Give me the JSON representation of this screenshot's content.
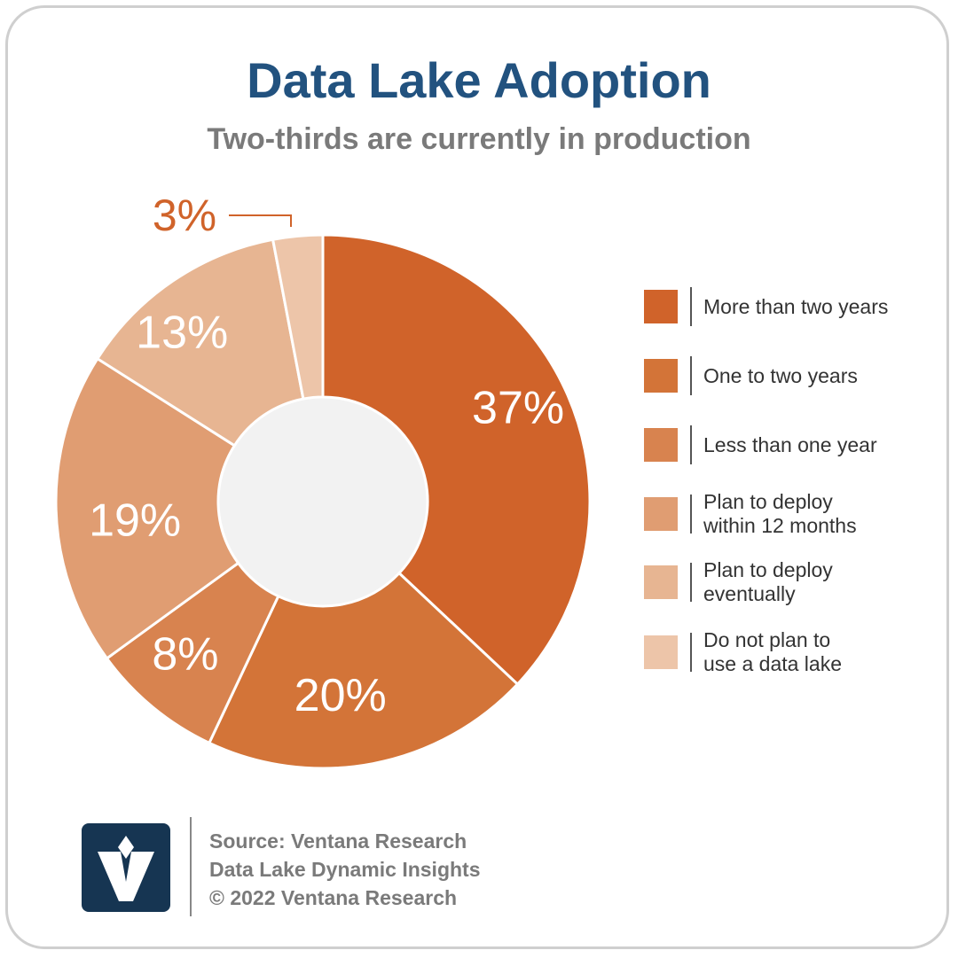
{
  "title": "Data Lake Adoption",
  "subtitle": "Two-thirds are currently in production",
  "chart_data": {
    "type": "pie",
    "donut": true,
    "title": "Data Lake Adoption",
    "subtitle": "Two-thirds are currently in production",
    "legend_position": "right",
    "slices": [
      {
        "label": "More than two years",
        "value": 37,
        "display": "37%",
        "color": "#d0632a"
      },
      {
        "label": "One to two years",
        "value": 20,
        "display": "20%",
        "color": "#d37438"
      },
      {
        "label": "Less than one year",
        "value": 8,
        "display": "8%",
        "color": "#d8834f"
      },
      {
        "label": "Plan to deploy\nwithin 12 months",
        "value": 19,
        "display": "19%",
        "color": "#e09d72"
      },
      {
        "label": "Plan to deploy\neventually",
        "value": 13,
        "display": "13%",
        "color": "#e7b592"
      },
      {
        "label": "Do not plan to\nuse a data lake",
        "value": 3,
        "display": "3%",
        "color": "#edc5a9"
      }
    ],
    "callout_color": "#d0632a",
    "hole_color": "#f2f2f2"
  },
  "footer": {
    "source": "Source: Ventana Research",
    "report": "Data Lake Dynamic Insights",
    "copyright": "© 2022 Ventana Research"
  },
  "colors": {
    "title": "#22527f",
    "logo_bg": "#163552",
    "logo_mark": "#ffffff"
  },
  "icons": {
    "logo": "ventana-v-logo-icon"
  }
}
